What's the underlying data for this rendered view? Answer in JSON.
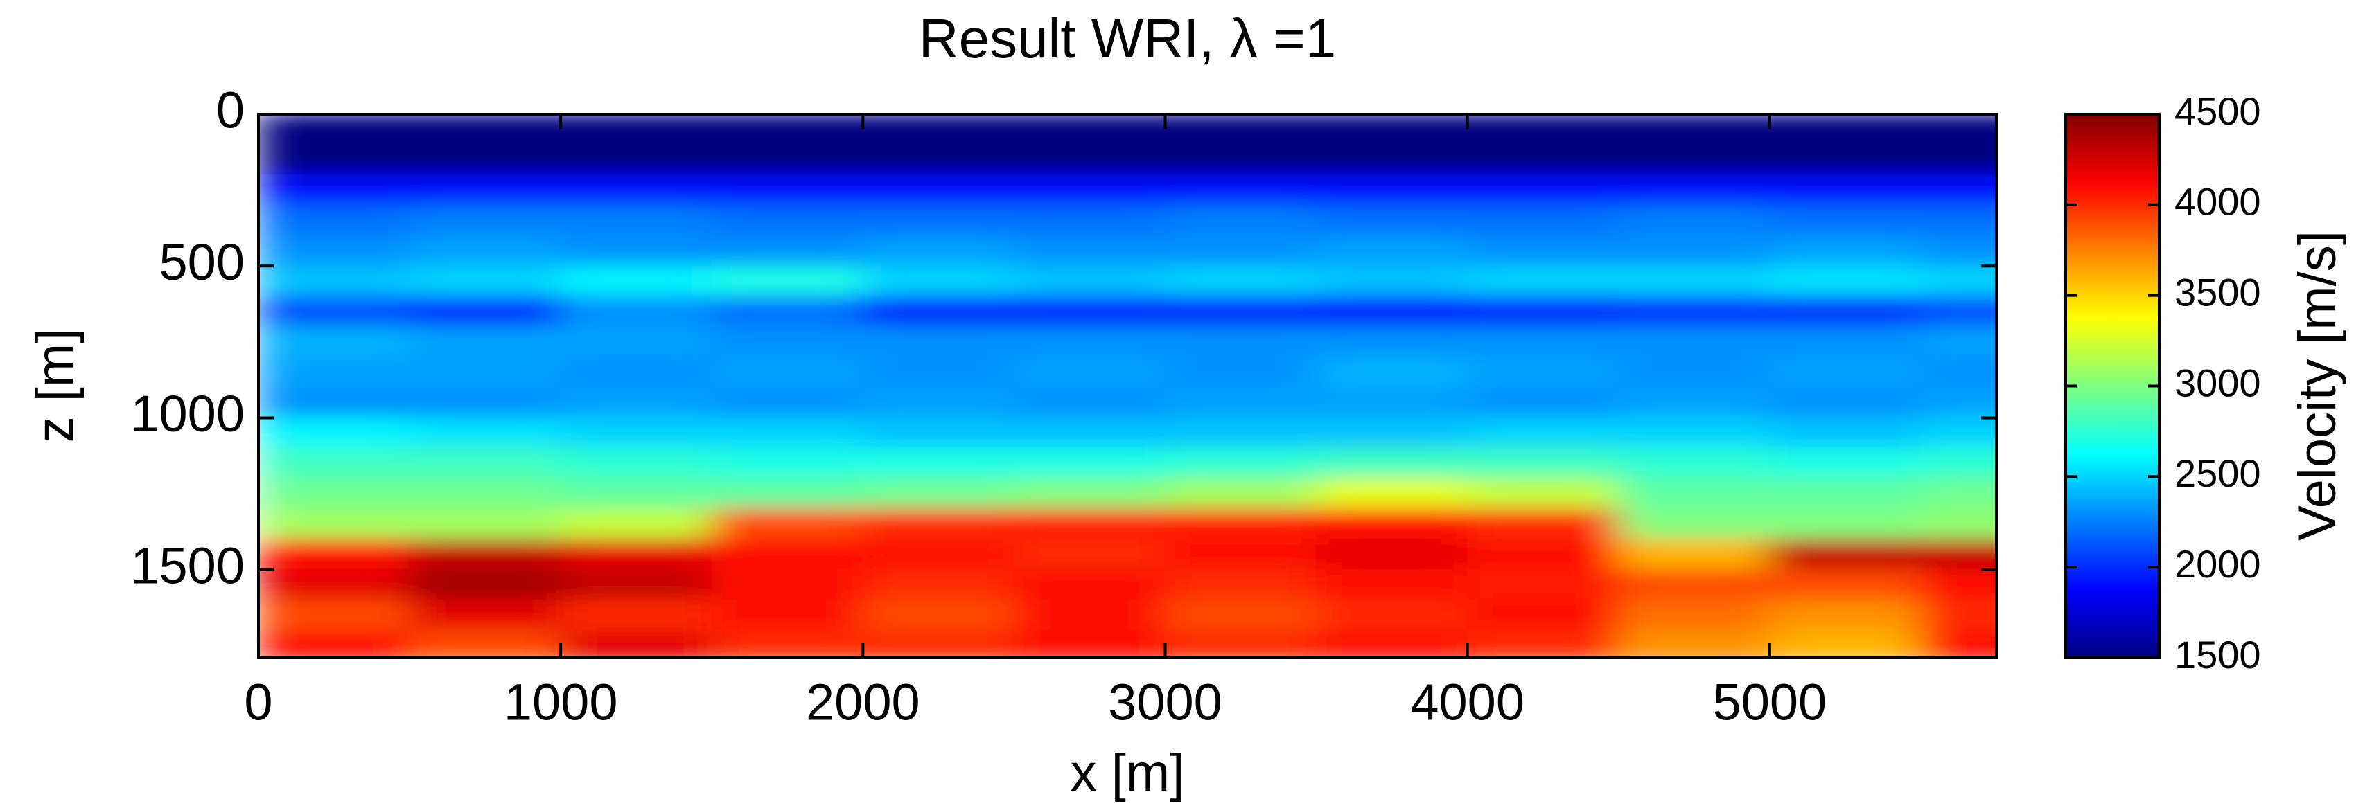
{
  "chart_data": {
    "type": "heatmap",
    "title": "Result WRI, λ =1",
    "x_label": "x [m]",
    "y_label": "z [m]",
    "colorbar_label": "Velocity [m/s]",
    "colormap": "jet",
    "y_reversed": true,
    "xlim": [
      0,
      5750
    ],
    "ylim": [
      0,
      1790
    ],
    "xticks": [
      0,
      1000,
      2000,
      3000,
      4000,
      5000
    ],
    "yticks": [
      0,
      500,
      1000,
      1500
    ],
    "clim": [
      1500,
      4500
    ],
    "cticks": [
      1500,
      2000,
      2500,
      3000,
      3500,
      4000,
      4500
    ],
    "x": [
      250,
      750,
      1250,
      1750,
      2250,
      2750,
      3250,
      3750,
      4250,
      4750,
      5250,
      5750
    ],
    "z": [
      50,
      150,
      250,
      350,
      450,
      550,
      650,
      750,
      850,
      950,
      1050,
      1150,
      1250,
      1350,
      1450,
      1550,
      1650,
      1750
    ],
    "values": [
      [
        1500,
        1500,
        1500,
        1500,
        1500,
        1500,
        1500,
        1500,
        1500,
        1500,
        1500,
        1500
      ],
      [
        1500,
        1500,
        1500,
        1500,
        1500,
        1500,
        1500,
        1500,
        1500,
        1500,
        1500,
        1500
      ],
      [
        1900,
        1900,
        1900,
        1900,
        1900,
        1900,
        1900,
        1900,
        1900,
        1900,
        1900,
        1900
      ],
      [
        2200,
        2250,
        2250,
        2200,
        2200,
        2200,
        2250,
        2200,
        2200,
        2250,
        2200,
        2200
      ],
      [
        2300,
        2350,
        2300,
        2300,
        2350,
        2300,
        2300,
        2350,
        2300,
        2300,
        2350,
        2300
      ],
      [
        2450,
        2500,
        2600,
        2700,
        2500,
        2450,
        2500,
        2450,
        2500,
        2500,
        2550,
        2500
      ],
      [
        2100,
        2000,
        2300,
        2200,
        1950,
        1950,
        1950,
        1900,
        1950,
        2000,
        2000,
        2100
      ],
      [
        2400,
        2350,
        2350,
        2300,
        2300,
        2300,
        2300,
        2300,
        2300,
        2300,
        2300,
        2350
      ],
      [
        2350,
        2350,
        2300,
        2350,
        2300,
        2350,
        2300,
        2400,
        2350,
        2300,
        2350,
        2300
      ],
      [
        2300,
        2300,
        2350,
        2300,
        2350,
        2300,
        2350,
        2350,
        2300,
        2350,
        2300,
        2350
      ],
      [
        2600,
        2550,
        2500,
        2500,
        2450,
        2450,
        2450,
        2450,
        2500,
        2500,
        2450,
        2500
      ],
      [
        2800,
        2800,
        2750,
        2700,
        2700,
        2700,
        2750,
        2800,
        2800,
        2750,
        2700,
        2750
      ],
      [
        2950,
        2950,
        2900,
        2900,
        2950,
        3000,
        3100,
        3300,
        3200,
        2900,
        2900,
        2950
      ],
      [
        3100,
        3100,
        3200,
        3900,
        4000,
        4050,
        4050,
        4100,
        4000,
        3000,
        3000,
        3050
      ],
      [
        4100,
        4300,
        4200,
        4100,
        4100,
        4000,
        4100,
        4200,
        4100,
        3600,
        4300,
        4300
      ],
      [
        4200,
        4400,
        4300,
        4100,
        4000,
        4100,
        4000,
        4100,
        4050,
        3900,
        3900,
        4100
      ],
      [
        3900,
        4200,
        4000,
        4100,
        3900,
        4100,
        3900,
        4000,
        4100,
        3800,
        3700,
        4000
      ],
      [
        4100,
        3900,
        4200,
        4000,
        4000,
        4100,
        4000,
        4100,
        4000,
        3700,
        3600,
        4100
      ]
    ]
  }
}
